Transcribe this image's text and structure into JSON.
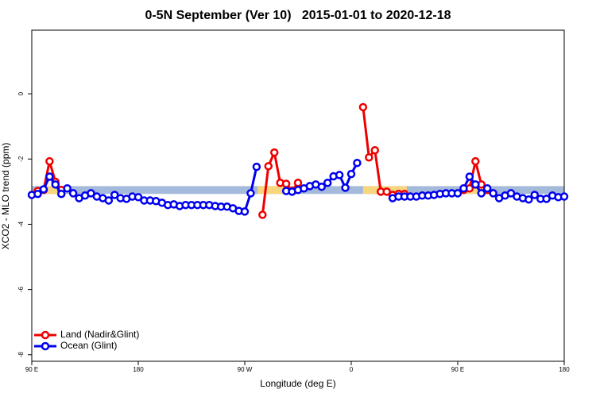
{
  "chart_data": {
    "type": "line",
    "title": "0-5N September (Ver 10)   2015-01-01 to 2020-12-18",
    "x_label": "Longitude (deg E)",
    "y_label": "XCO2 - MLO trend (ppm)",
    "xlim": [
      90,
      540
    ],
    "ylim": [
      -8.2,
      1.95
    ],
    "xticks": [
      {
        "value": 90,
        "label": "90 E"
      },
      {
        "value": 180,
        "label": "180"
      },
      {
        "value": 270,
        "label": "90 W"
      },
      {
        "value": 360,
        "label": "0"
      },
      {
        "value": 450,
        "label": "90 E"
      },
      {
        "value": 540,
        "label": "180"
      }
    ],
    "yticks": [
      -8,
      -6,
      -4,
      -2,
      0
    ],
    "band": {
      "ylim": [
        -3.07,
        -2.83
      ],
      "color": "#a5bada"
    },
    "land_spans": {
      "color": "#f7d67e",
      "ranges": [
        [
          101,
          115
        ],
        [
          281,
          310
        ],
        [
          370,
          407
        ],
        [
          456,
          474
        ]
      ]
    },
    "legend": "bottom-left",
    "series": [
      {
        "name": "Land (Nadir&Glint)",
        "color": "#ee0000",
        "x": [
          95,
          100,
          105,
          110,
          115,
          120,
          285,
          290,
          295,
          300,
          305,
          310,
          315,
          320,
          370,
          375,
          380,
          385,
          390,
          395,
          400,
          405,
          410,
          455,
          460,
          465,
          470,
          475
        ],
        "values": [
          -2.98,
          -2.95,
          -2.07,
          -2.7,
          -2.95,
          null,
          -3.71,
          -2.22,
          -1.8,
          -2.73,
          -2.76,
          -2.98,
          -2.73,
          null,
          -0.41,
          -1.95,
          -1.73,
          -3.0,
          -3.0,
          -3.1,
          -3.07,
          -3.07,
          null,
          -2.95,
          -2.9,
          -2.07,
          -2.78,
          -2.95
        ]
      },
      {
        "name": "Ocean (Glint)",
        "color": "#0000ee",
        "x": [
          90,
          95,
          100,
          105,
          110,
          115,
          120,
          125,
          130,
          135,
          140,
          145,
          150,
          155,
          160,
          165,
          170,
          175,
          180,
          185,
          190,
          195,
          200,
          205,
          210,
          215,
          220,
          225,
          230,
          235,
          240,
          245,
          250,
          255,
          260,
          265,
          270,
          275,
          280,
          285,
          305,
          310,
          315,
          320,
          325,
          330,
          335,
          340,
          345,
          350,
          355,
          360,
          365,
          370,
          395,
          400,
          405,
          410,
          415,
          420,
          425,
          430,
          435,
          440,
          445,
          450,
          455,
          460,
          465,
          470,
          475,
          480,
          485,
          490,
          495,
          500,
          505,
          510,
          515,
          520,
          525,
          530,
          535,
          540
        ],
        "values": [
          -3.1,
          -3.07,
          -2.93,
          -2.54,
          -2.78,
          -3.07,
          -2.9,
          -3.05,
          -3.2,
          -3.12,
          -3.05,
          -3.15,
          -3.2,
          -3.27,
          -3.1,
          -3.2,
          -3.22,
          -3.15,
          -3.17,
          -3.27,
          -3.27,
          -3.29,
          -3.34,
          -3.41,
          -3.39,
          -3.44,
          -3.41,
          -3.41,
          -3.41,
          -3.41,
          -3.41,
          -3.44,
          -3.46,
          -3.46,
          -3.51,
          -3.59,
          -3.61,
          -3.05,
          -2.24,
          null,
          -2.98,
          -3.0,
          -2.95,
          -2.9,
          -2.83,
          -2.78,
          -2.85,
          -2.73,
          -2.53,
          -2.49,
          -2.88,
          -2.46,
          -2.12,
          null,
          -3.2,
          -3.15,
          -3.15,
          -3.15,
          -3.15,
          -3.12,
          -3.12,
          -3.1,
          -3.07,
          -3.05,
          -3.05,
          -3.05,
          -2.9,
          -2.54,
          -2.78,
          -3.05,
          -2.9,
          -3.05,
          -3.2,
          -3.12,
          -3.05,
          -3.15,
          -3.2,
          -3.24,
          -3.1,
          -3.22,
          -3.22,
          -3.12,
          -3.17,
          -3.15
        ]
      }
    ]
  }
}
